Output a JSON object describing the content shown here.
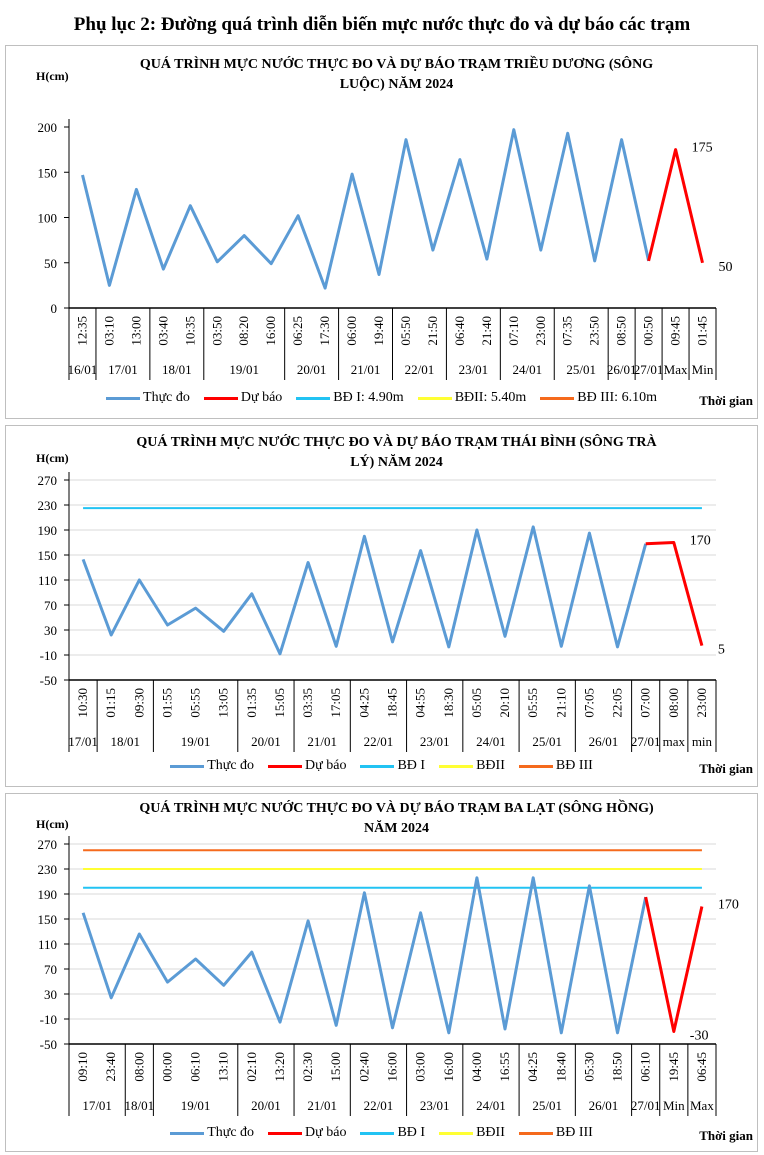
{
  "page_title": "Phụ lục 2: Đường quá trình diễn biến mực nước thực đo và dự báo các trạm",
  "colors": {
    "actual": "#5b9bd5",
    "forecast": "#ff0000",
    "bd1": "#22c3f3",
    "bd2": "#ffff33",
    "bd3": "#f56a1d"
  },
  "chart_data": [
    {
      "type": "line",
      "title": [
        "QUÁ TRÌNH MỰC NƯỚC THỰC ĐO VÀ DỰ BÁO TRẠM TRIỀU DƯƠNG (SÔNG",
        "LUỘC) NĂM 2024"
      ],
      "ylabel": "H(cm)",
      "xlabel": "Thời gian",
      "ylim": [
        0,
        200
      ],
      "yticks": [
        "0",
        "50",
        "100",
        "150",
        "200"
      ],
      "grid": false,
      "categories": [
        "12:35",
        "03:10",
        "13:00",
        "03:40",
        "10:35",
        "03:50",
        "08:20",
        "16:00",
        "06:25",
        "17:30",
        "06:00",
        "19:40",
        "05:50",
        "21:50",
        "06:40",
        "21:40",
        "07:10",
        "23:00",
        "07:35",
        "23:50",
        "08:50",
        "00:50",
        "09:45",
        "01:45"
      ],
      "groups": [
        {
          "label": "16/01",
          "n": 1
        },
        {
          "label": "17/01",
          "n": 2
        },
        {
          "label": "18/01",
          "n": 2
        },
        {
          "label": "19/01",
          "n": 3
        },
        {
          "label": "20/01",
          "n": 2
        },
        {
          "label": "21/01",
          "n": 2
        },
        {
          "label": "22/01",
          "n": 2
        },
        {
          "label": "23/01",
          "n": 2
        },
        {
          "label": "24/01",
          "n": 2
        },
        {
          "label": "25/01",
          "n": 2
        },
        {
          "label": "26/01",
          "n": 1
        },
        {
          "label": "27/01",
          "n": 1
        },
        {
          "label": "Max",
          "n": 1
        },
        {
          "label": "Min",
          "n": 1
        }
      ],
      "series": [
        {
          "name": "Thực đo",
          "values": [
            147,
            25,
            131,
            43,
            113,
            51,
            80,
            49,
            102,
            22,
            148,
            37,
            186,
            64,
            164,
            54,
            197,
            64,
            193,
            52,
            186,
            52,
            null,
            null
          ]
        },
        {
          "name": "Dự báo",
          "values": [
            null,
            null,
            null,
            null,
            null,
            null,
            null,
            null,
            null,
            null,
            null,
            null,
            null,
            null,
            null,
            null,
            null,
            null,
            null,
            null,
            null,
            52,
            175,
            50
          ]
        }
      ],
      "levels": [],
      "annotations": [
        {
          "label": "175",
          "index": 22,
          "value": 175
        },
        {
          "label": "50",
          "index": 23,
          "value": 50
        }
      ],
      "legend": [
        "Thực đo",
        "Dự báo",
        "BĐ I: 4.90m",
        "BĐII: 5.40m",
        "BĐ III: 6.10m"
      ]
    },
    {
      "type": "line",
      "title": [
        "QUÁ TRÌNH MỰC NƯỚC THỰC ĐO VÀ DỰ BÁO TRẠM THÁI BÌNH (SÔNG TRÀ",
        "LÝ) NĂM 2024"
      ],
      "ylabel": "H(cm)",
      "xlabel": "Thời gian",
      "ylim": [
        -50,
        270
      ],
      "yticks": [
        "-50",
        "-10",
        "30",
        "70",
        "110",
        "150",
        "190",
        "230",
        "270"
      ],
      "grid": true,
      "categories": [
        "10:30",
        "01:15",
        "09:30",
        "01:55",
        "05:55",
        "13:05",
        "01:35",
        "15:05",
        "03:35",
        "17:05",
        "04:25",
        "18:45",
        "04:55",
        "18:30",
        "05:05",
        "20:10",
        "05:55",
        "21:10",
        "07:05",
        "22:05",
        "07:00",
        "08:00",
        "23:00"
      ],
      "groups": [
        {
          "label": "17/01",
          "n": 1
        },
        {
          "label": "18/01",
          "n": 2
        },
        {
          "label": "19/01",
          "n": 3
        },
        {
          "label": "20/01",
          "n": 2
        },
        {
          "label": "21/01",
          "n": 2
        },
        {
          "label": "22/01",
          "n": 2
        },
        {
          "label": "23/01",
          "n": 2
        },
        {
          "label": "24/01",
          "n": 2
        },
        {
          "label": "25/01",
          "n": 2
        },
        {
          "label": "26/01",
          "n": 2
        },
        {
          "label": "27/01",
          "n": 1
        },
        {
          "label": "max",
          "n": 1
        },
        {
          "label": "min",
          "n": 1
        }
      ],
      "series": [
        {
          "name": "Thực đo",
          "values": [
            143,
            22,
            110,
            38,
            65,
            28,
            88,
            -8,
            138,
            4,
            180,
            11,
            157,
            3,
            190,
            20,
            195,
            4,
            185,
            3,
            168,
            null,
            null
          ]
        },
        {
          "name": "Dự báo",
          "values": [
            null,
            null,
            null,
            null,
            null,
            null,
            null,
            null,
            null,
            null,
            null,
            null,
            null,
            null,
            null,
            null,
            null,
            null,
            null,
            null,
            168,
            170,
            5
          ]
        }
      ],
      "levels": [
        {
          "name": "BĐ I",
          "value": 225
        }
      ],
      "annotations": [
        {
          "label": "170",
          "index": 21,
          "value": 170
        },
        {
          "label": "5",
          "index": 22,
          "value": 5
        }
      ],
      "legend": [
        "Thực đo",
        "Dự báo",
        "BĐ I",
        "BĐII",
        "BĐ III"
      ]
    },
    {
      "type": "line",
      "title": [
        "QUÁ TRÌNH MỰC NƯỚC THỰC ĐO VÀ DỰ BÁO TRẠM BA LẠT (SÔNG HỒNG)",
        "NĂM 2024"
      ],
      "ylabel": "H(cm)",
      "xlabel": "Thời gian",
      "ylim": [
        -50,
        270
      ],
      "yticks": [
        "-50",
        "-10",
        "30",
        "70",
        "110",
        "150",
        "190",
        "230",
        "270"
      ],
      "grid": true,
      "categories": [
        "09:10",
        "23:40",
        "08:00",
        "00:00",
        "06:10",
        "13:10",
        "02:10",
        "13:20",
        "02:30",
        "15:00",
        "02:40",
        "16:00",
        "03:00",
        "16:00",
        "04:00",
        "16:55",
        "04:25",
        "18:40",
        "05:30",
        "18:50",
        "06:10",
        "19:45",
        "06:45"
      ],
      "groups": [
        {
          "label": "17/01",
          "n": 2
        },
        {
          "label": "18/01",
          "n": 1
        },
        {
          "label": "19/01",
          "n": 3
        },
        {
          "label": "20/01",
          "n": 2
        },
        {
          "label": "21/01",
          "n": 2
        },
        {
          "label": "22/01",
          "n": 2
        },
        {
          "label": "23/01",
          "n": 2
        },
        {
          "label": "24/01",
          "n": 2
        },
        {
          "label": "25/01",
          "n": 2
        },
        {
          "label": "26/01",
          "n": 2
        },
        {
          "label": "27/01",
          "n": 1
        },
        {
          "label": "Min",
          "n": 1
        },
        {
          "label": "Max",
          "n": 1
        }
      ],
      "series": [
        {
          "name": "Thực đo",
          "values": [
            160,
            24,
            126,
            49,
            86,
            44,
            97,
            -15,
            147,
            -20,
            192,
            -24,
            160,
            -32,
            216,
            -26,
            216,
            -32,
            203,
            -32,
            185,
            null,
            null
          ]
        },
        {
          "name": "Dự báo",
          "values": [
            null,
            null,
            null,
            null,
            null,
            null,
            null,
            null,
            null,
            null,
            null,
            null,
            null,
            null,
            null,
            null,
            null,
            null,
            null,
            null,
            185,
            -30,
            170
          ]
        }
      ],
      "levels": [
        {
          "name": "BĐ I",
          "value": 200
        },
        {
          "name": "BĐII",
          "value": 230
        },
        {
          "name": "BĐ III",
          "value": 260
        }
      ],
      "annotations": [
        {
          "label": "170",
          "index": 22,
          "value": 170
        },
        {
          "label": "-30",
          "index": 21,
          "value": -30
        }
      ],
      "legend": [
        "Thực đo",
        "Dự báo",
        "BĐ I",
        "BĐII",
        "BĐ III"
      ]
    }
  ]
}
